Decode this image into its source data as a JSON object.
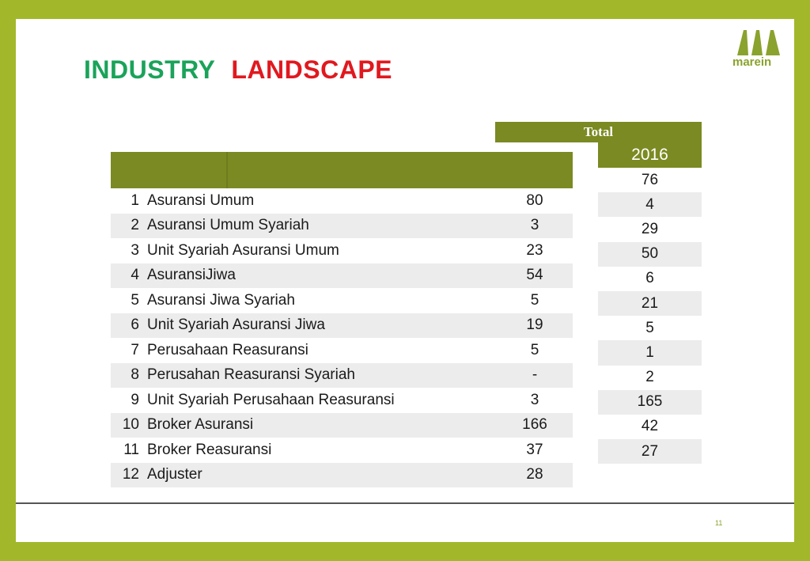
{
  "title": {
    "word1": "INDUSTRY",
    "word2": "LANDSCAPE"
  },
  "logo": {
    "text": "marein",
    "color": "#8aa22e"
  },
  "colors": {
    "header": "#7b8a22",
    "frame": "#a2b82a",
    "title_green": "#1aa35a",
    "title_red": "#e0191f",
    "row_alt": "#ececec"
  },
  "table_main": {
    "rows": [
      {
        "no": "1",
        "name": "Asuransi Umum",
        "value": "80"
      },
      {
        "no": "2",
        "name": "Asuransi Umum Syariah",
        "value": "3"
      },
      {
        "no": "3",
        "name": "Unit Syariah Asuransi Umum",
        "value": "23"
      },
      {
        "no": "4",
        "name": "AsuransiJiwa",
        "value": "54"
      },
      {
        "no": "5",
        "name": "Asuransi Jiwa Syariah",
        "value": "5"
      },
      {
        "no": "6",
        "name": "Unit Syariah Asuransi Jiwa",
        "value": "19"
      },
      {
        "no": "7",
        "name": "Perusahaan Reasuransi",
        "value": "5"
      },
      {
        "no": "8",
        "name": "Perusahan Reasuransi Syariah",
        "value": "-"
      },
      {
        "no": "9",
        "name": "Unit Syariah Perusahaan Reasuransi",
        "value": "3"
      },
      {
        "no": "10",
        "name": "Broker Asuransi",
        "value": "166"
      },
      {
        "no": "11",
        "name": "Broker Reasuransi",
        "value": "37"
      },
      {
        "no": "12",
        "name": "Adjuster",
        "value": "28"
      }
    ]
  },
  "table_total": {
    "header": "Total",
    "year": "2016",
    "values": [
      "76",
      "4",
      "29",
      "50",
      "6",
      "21",
      "5",
      "1",
      "2",
      "165",
      "42",
      "27"
    ]
  },
  "page_number": "11"
}
